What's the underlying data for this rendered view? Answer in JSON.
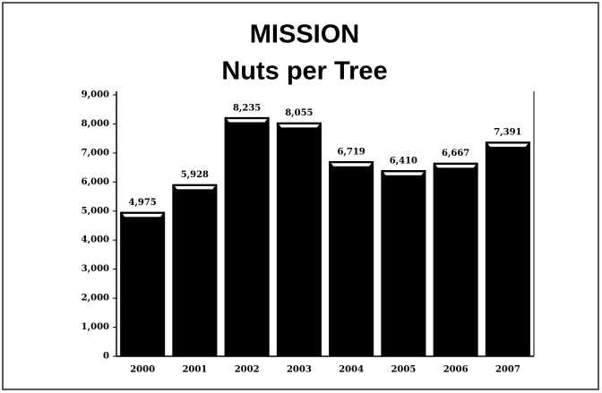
{
  "chart_data": {
    "type": "bar",
    "title": "MISSION",
    "subtitle": "Nuts per Tree",
    "categories": [
      "2000",
      "2001",
      "2002",
      "2003",
      "2004",
      "2005",
      "2006",
      "2007"
    ],
    "values": [
      4975,
      5928,
      8235,
      8055,
      6719,
      6410,
      6667,
      7391
    ],
    "value_labels": [
      "4,975",
      "5,928",
      "8,235",
      "8,055",
      "6,719",
      "6,410",
      "6,667",
      "7,391"
    ],
    "color": "#000000",
    "ylim": [
      0,
      9000
    ],
    "yticks": [
      0,
      {
        "value": 1000,
        "label": "1,000"
      },
      {
        "value": 2000,
        "label": "2,000"
      },
      {
        "value": 3000,
        "label": "3,000"
      },
      {
        "value": 4000,
        "label": "4,000"
      },
      {
        "value": 5000,
        "label": "5,000"
      },
      {
        "value": 6000,
        "label": "6,000"
      },
      {
        "value": 7000,
        "label": "7,000"
      },
      {
        "value": 8000,
        "label": "8,000"
      },
      {
        "value": 9000,
        "label": "9,000"
      }
    ],
    "grid": false
  }
}
